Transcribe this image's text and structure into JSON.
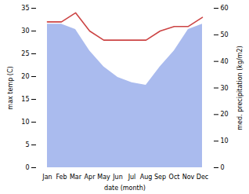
{
  "chart_data": {
    "type": "line",
    "xlabel": "date (month)",
    "ylabel": "max temp (C)",
    "y2label": "med. precipitation (kg/m2)",
    "categories": [
      "Jan",
      "Feb",
      "Mar",
      "Apr",
      "May",
      "Jun",
      "Jul",
      "Aug",
      "Sep",
      "Oct",
      "Nov",
      "Dec"
    ],
    "series": [
      {
        "type": "area",
        "axis": "y2",
        "color": "#aabbee",
        "values": [
          54,
          54,
          52,
          44,
          38,
          34,
          32,
          31,
          38,
          44,
          52,
          54
        ]
      },
      {
        "type": "line",
        "axis": "y",
        "color": "#cc4444",
        "values": [
          32.0,
          32.0,
          34.0,
          30.0,
          28.0,
          28.0,
          28.0,
          28.0,
          30.0,
          31.0,
          31.0,
          33.0
        ]
      }
    ],
    "ylim": [
      0,
      35
    ],
    "yticks": [
      0,
      5,
      10,
      15,
      20,
      25,
      30,
      35
    ],
    "y2lim": [
      0,
      60
    ],
    "y2ticks": [
      0,
      10,
      20,
      30,
      40,
      50,
      60
    ]
  }
}
